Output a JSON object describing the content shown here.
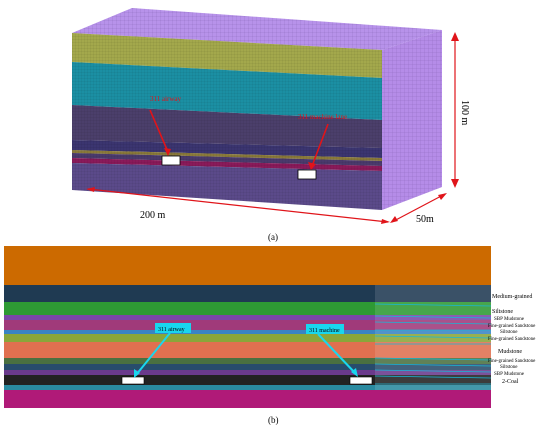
{
  "figure_a": {
    "caption": "(a)",
    "dim_length": "200 m",
    "dim_width": "50m",
    "dim_height": "100 m",
    "label_airway": "311 airway",
    "label_machine": "311 machine lane"
  },
  "figure_b": {
    "caption": "(b)",
    "label_airway": "311 airway",
    "label_machine": "311     machine",
    "strata": [
      {
        "name": "Medium-grained",
        "color": "#1f3a52"
      },
      {
        "name": "Siltstone",
        "color": "#2e9a34"
      },
      {
        "name": "SBP Mudstone",
        "color": "#7b46a8"
      },
      {
        "name": "Fine-grained Sandstone",
        "color": "#a03a7a"
      },
      {
        "name": "Siltstone",
        "color": "#3a84c4"
      },
      {
        "name": "Fine-grained Sandstone",
        "color": "#5a9a3a"
      },
      {
        "name": "Mudstone",
        "color": "#e07050"
      },
      {
        "name": "Fine-grained Sandstone",
        "color": "#4a7040"
      },
      {
        "name": "Siltstone",
        "color": "#284c6c"
      },
      {
        "name": "SBP Mudstone",
        "color": "#6a3a8c"
      },
      {
        "name": "2-Coal",
        "color": "#222222"
      }
    ]
  },
  "colors": {
    "arrow_red": "#e0141a",
    "callout_cyan": "#19d6ee",
    "mesh_purple": "#b48ae6",
    "top_layer": "#cc6a00"
  }
}
